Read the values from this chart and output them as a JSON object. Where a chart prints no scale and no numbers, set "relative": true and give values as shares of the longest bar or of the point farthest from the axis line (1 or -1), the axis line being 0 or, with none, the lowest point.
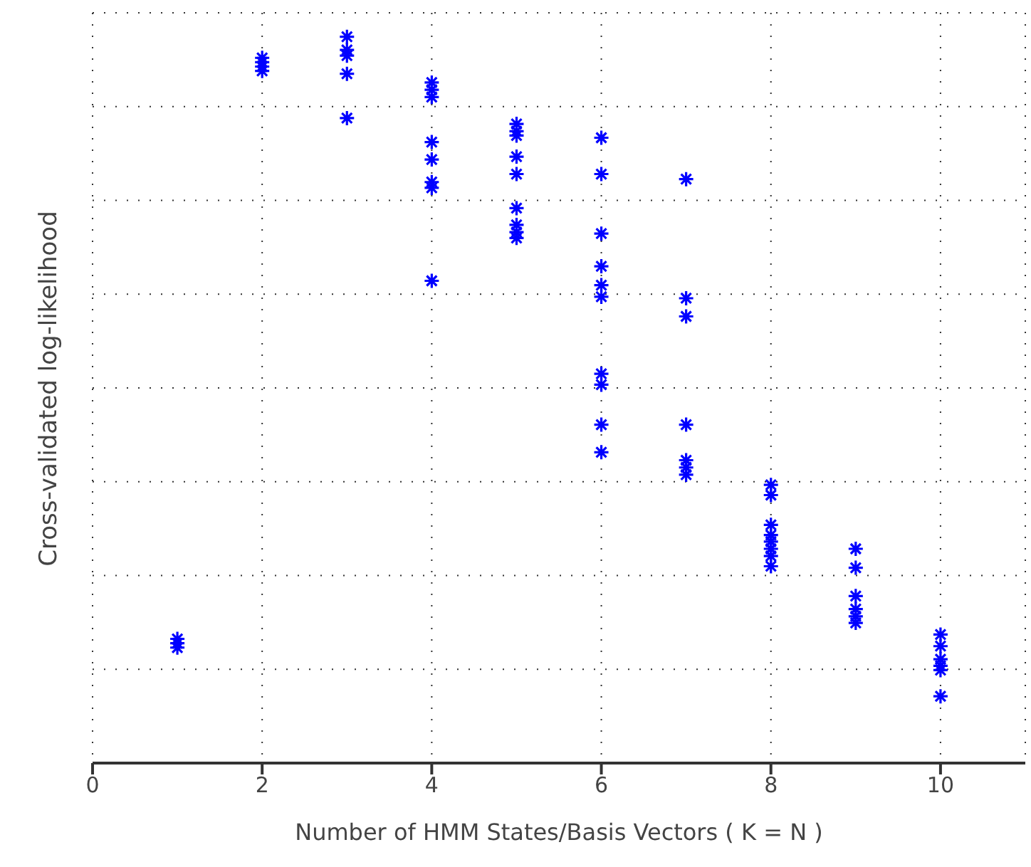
{
  "chart_data": {
    "type": "scatter",
    "relative": true,
    "xlabel": "Number of HMM States/Basis Vectors ( K = N )",
    "ylabel": "Cross-validated log-likelihood",
    "xlim": [
      0,
      11
    ],
    "xticks": [
      0,
      2,
      4,
      6,
      8,
      10
    ],
    "grid": true,
    "marker": "cross",
    "series": [
      {
        "color": "#0000ff",
        "x": [
          1,
          1,
          1,
          2,
          2,
          2,
          2,
          3,
          3,
          3,
          3,
          3,
          4,
          4,
          4,
          4,
          4,
          4,
          4,
          4,
          5,
          5,
          5,
          5,
          5,
          5,
          5,
          5,
          5,
          6,
          6,
          6,
          6,
          6,
          6,
          6,
          6,
          6,
          6,
          7,
          7,
          7,
          7,
          7,
          7,
          7,
          8,
          8,
          8,
          8,
          8,
          8,
          8,
          8,
          9,
          9,
          9,
          9,
          9,
          9,
          10,
          10,
          10,
          10,
          10,
          10
        ],
        "values": [
          0.171,
          0.165,
          0.159,
          0.971,
          0.965,
          0.959,
          0.953,
          1,
          0.982,
          0.974,
          0.949,
          0.888,
          0.937,
          0.927,
          0.917,
          0.855,
          0.831,
          0.8,
          0.792,
          0.664,
          0.88,
          0.87,
          0.864,
          0.835,
          0.811,
          0.764,
          0.741,
          0.731,
          0.723,
          0.861,
          0.811,
          0.729,
          0.684,
          0.658,
          0.642,
          0.536,
          0.521,
          0.466,
          0.428,
          0.804,
          0.64,
          0.615,
          0.466,
          0.417,
          0.407,
          0.397,
          0.383,
          0.369,
          0.328,
          0.314,
          0.305,
          0.295,
          0.285,
          0.271,
          0.295,
          0.269,
          0.23,
          0.212,
          0.202,
          0.193,
          0.177,
          0.161,
          0.143,
          0.134,
          0.128,
          0.092
        ]
      }
    ]
  }
}
